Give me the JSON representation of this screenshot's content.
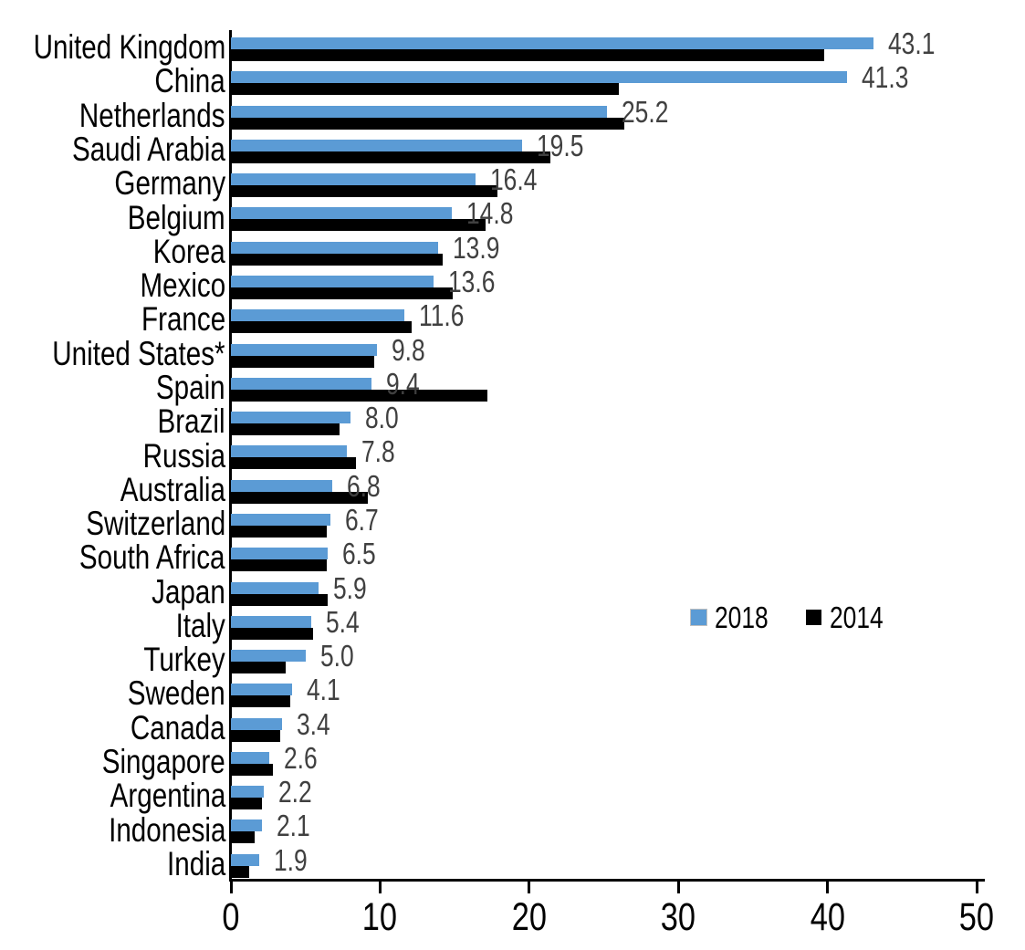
{
  "chart_data": {
    "type": "bar",
    "orientation": "horizontal",
    "title": "",
    "categories": [
      "United Kingdom",
      "China",
      "Netherlands",
      "Saudi Arabia",
      "Germany",
      "Belgium",
      "Korea",
      "Mexico",
      "France",
      "United States*",
      "Spain",
      "Brazil",
      "Russia",
      "Australia",
      "Switzerland",
      "South Africa",
      "Japan",
      "Italy",
      "Turkey",
      "Sweden",
      "Canada",
      "Singapore",
      "Argentina",
      "Indonesia",
      "India"
    ],
    "series": [
      {
        "name": "2018",
        "color": "#5B9BD5",
        "values": [
          43.1,
          41.3,
          25.2,
          19.5,
          16.4,
          14.8,
          13.9,
          13.6,
          11.6,
          9.8,
          9.4,
          8.0,
          7.8,
          6.8,
          6.7,
          6.5,
          5.9,
          5.4,
          5.0,
          4.1,
          3.4,
          2.6,
          2.2,
          2.1,
          1.9
        ],
        "data_labels": [
          "43.1",
          "41.3",
          "25.2",
          "19.5",
          "16.4",
          "14.8",
          "13.9",
          "13.6",
          "11.6",
          "9.8",
          "9.4",
          "8.0",
          "7.8",
          "6.8",
          "6.7",
          "6.5",
          "5.9",
          "5.4",
          "5.0",
          "4.1",
          "3.4",
          "2.6",
          "2.2",
          "2.1",
          "1.9"
        ]
      },
      {
        "name": "2014",
        "color": "#000000",
        "values": [
          39.8,
          26.0,
          26.4,
          21.4,
          17.9,
          17.1,
          14.2,
          14.9,
          12.1,
          9.6,
          17.2,
          7.3,
          8.4,
          9.2,
          6.4,
          6.4,
          6.5,
          5.5,
          3.7,
          4.0,
          3.3,
          2.8,
          2.1,
          1.6,
          1.2
        ]
      }
    ],
    "xlim": [
      0,
      50
    ],
    "x_ticks": [
      "0",
      "10",
      "20",
      "30",
      "40",
      "50"
    ],
    "grid": false,
    "legend": {
      "position": "middle-right",
      "items": [
        {
          "label": "2018",
          "color": "#5B9BD5"
        },
        {
          "label": "2014",
          "color": "#000000"
        }
      ]
    },
    "value_label_color": "#404040",
    "axis_color": "#000000"
  }
}
